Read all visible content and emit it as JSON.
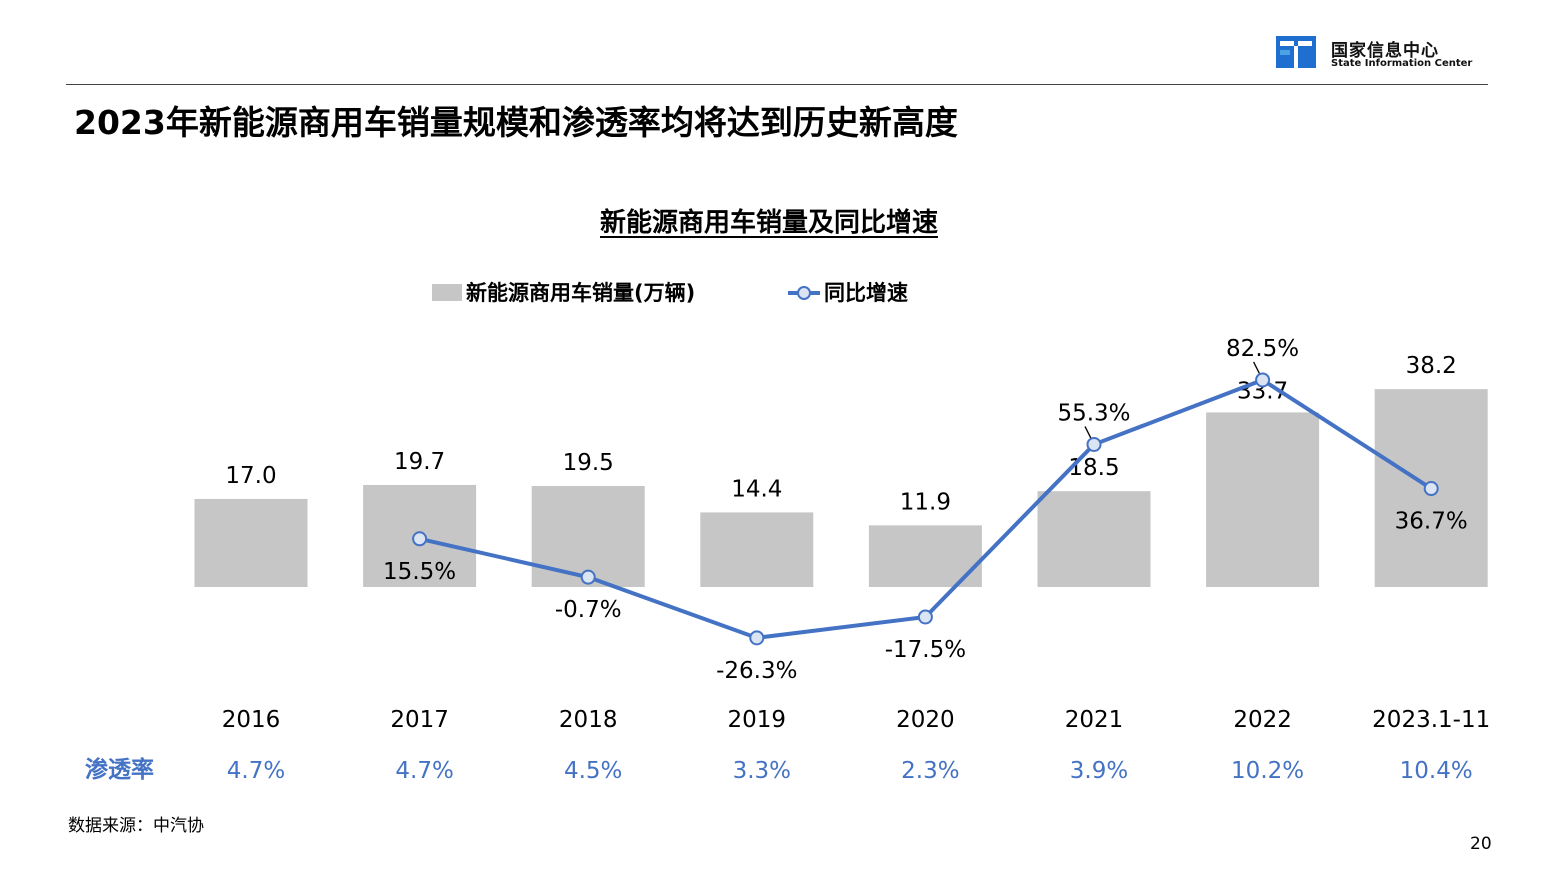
{
  "header": {
    "org_name_cn": "国家信息中心",
    "org_name_en": "State Information Center",
    "logo_colors": {
      "blue": "#1f6fd1",
      "light": "#4ba3e3"
    }
  },
  "slide_title": "2023年新能源商用车销量规模和渗透率均将达到历史新高度",
  "colors": {
    "bar": "#c6c6c6",
    "line": "#4472c4",
    "penetration": "#4472c4",
    "marker_fill": "#dbe4f3"
  },
  "chart_data": {
    "type": "bar",
    "title": "新能源商用车销量及同比增速",
    "legend_placement": "top",
    "categories": [
      "2016",
      "2017",
      "2018",
      "2019",
      "2020",
      "2021",
      "2022",
      "2023.1-11"
    ],
    "series": [
      {
        "name": "新能源商用车销量(万辆)",
        "type": "bar",
        "values": [
          17.0,
          19.7,
          19.5,
          14.4,
          11.9,
          18.5,
          33.7,
          38.2
        ]
      },
      {
        "name": "同比增速",
        "type": "line",
        "values": [
          null,
          15.5,
          -0.7,
          -26.3,
          -17.5,
          55.3,
          82.5,
          36.7
        ],
        "labels": [
          "",
          "15.5%",
          "-0.7%",
          "-26.3%",
          "-17.5%",
          "55.3%",
          "82.5%",
          "36.7%"
        ]
      }
    ],
    "bar_labels": [
      "17.0",
      "19.7",
      "19.5",
      "14.4",
      "11.9",
      "18.5",
      "33.7",
      "38.2"
    ],
    "penetration": {
      "label": "渗透率",
      "values": [
        "4.7%",
        "4.7%",
        "4.5%",
        "3.3%",
        "2.3%",
        "3.9%",
        "10.2%",
        "10.4%"
      ]
    },
    "grid": false
  },
  "footer": {
    "source": "数据来源：中汽协",
    "page_number": "20"
  }
}
